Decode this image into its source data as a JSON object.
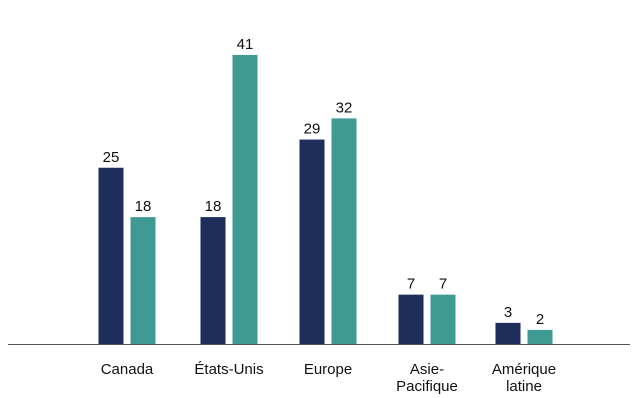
{
  "chart_data": {
    "type": "bar",
    "title": "",
    "xlabel": "",
    "ylabel": "",
    "categories": [
      [
        "Canada"
      ],
      [
        "États-Unis"
      ],
      [
        "Europe"
      ],
      [
        "Asie-",
        "Pacifique"
      ],
      [
        "Amérique",
        "latine"
      ]
    ],
    "series": [
      {
        "color": "#1e2d5a",
        "values": [
          25,
          18,
          29,
          7,
          3
        ]
      },
      {
        "color": "#3f9a94",
        "values": [
          18,
          41,
          32,
          7,
          2
        ]
      }
    ],
    "ylim": [
      0,
      45
    ],
    "grid": false,
    "legend": "none",
    "axis_color": "#555555"
  }
}
